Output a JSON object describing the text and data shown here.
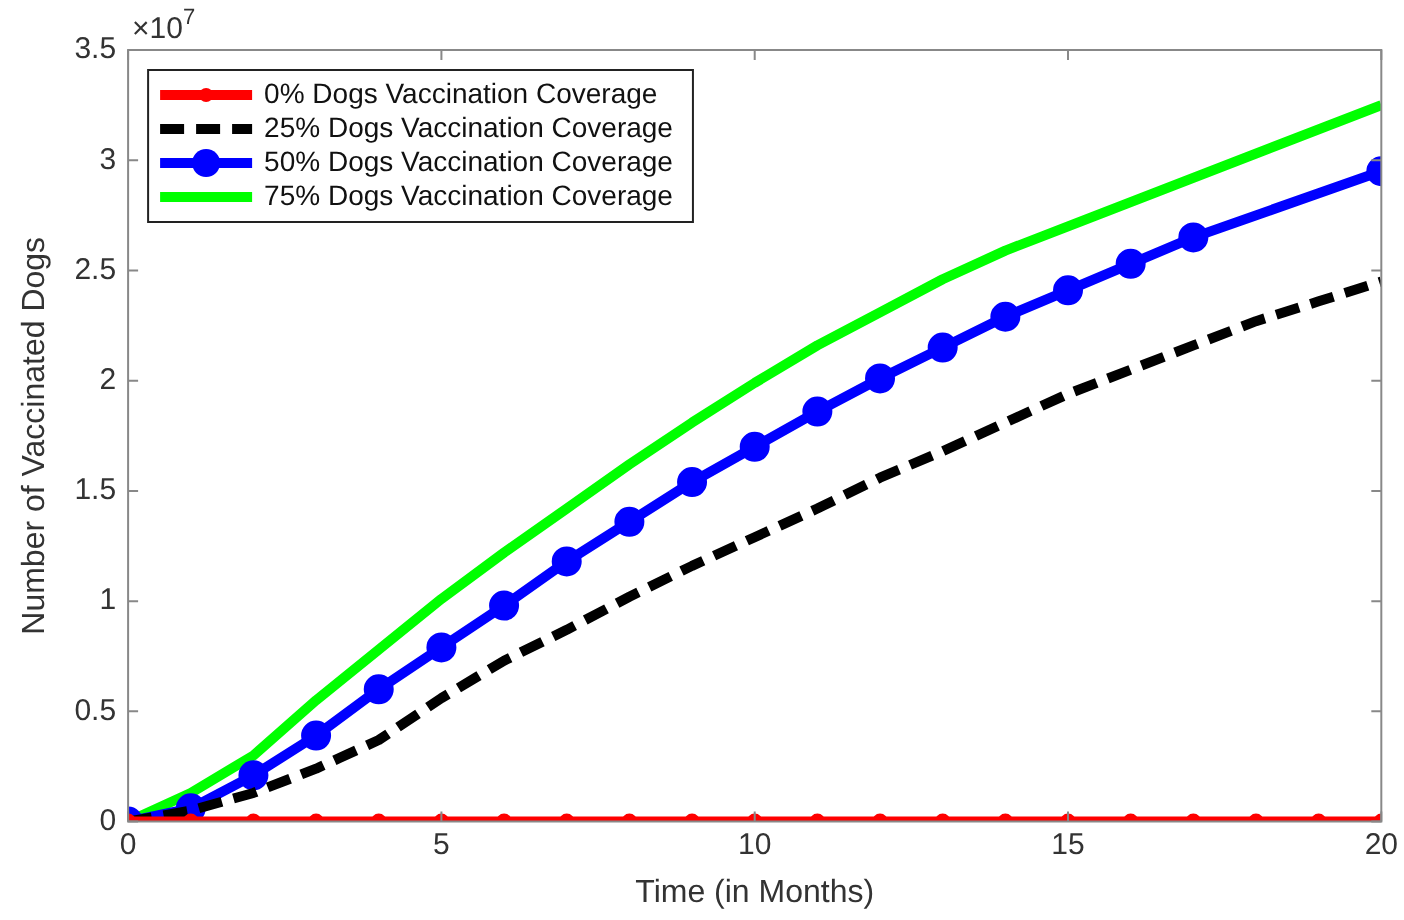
{
  "chart_data": {
    "type": "line",
    "xlabel": "Time (in Months)",
    "ylabel": "Number of Vaccinated Dogs",
    "annotations": [
      "×10$^{7}$"
    ],
    "x": [
      0,
      1,
      2,
      3,
      4,
      5,
      6,
      7,
      8,
      9,
      10,
      11,
      12,
      13,
      14,
      15,
      16,
      17,
      18,
      19,
      20
    ],
    "xlim": [
      0,
      20
    ],
    "xticks": [
      0,
      5,
      10,
      15,
      20
    ],
    "ylim": [
      0,
      3.5
    ],
    "yticks": [
      0,
      0.5,
      1,
      1.5,
      2,
      2.5,
      3,
      3.5
    ],
    "grid": false,
    "legend": "top left",
    "series": [
      {
        "name": "0% Dogs Vaccination Coverage",
        "color": "#ff0000",
        "marker": "circle",
        "line_style": "solid",
        "values": [
          0,
          0,
          0,
          0,
          0,
          0,
          0,
          0,
          0,
          0,
          0,
          0,
          0,
          0,
          0,
          0,
          0,
          0,
          0,
          0,
          0
        ]
      },
      {
        "name": "25% Dogs Vaccination Coverage",
        "color": "#000000",
        "marker": "none",
        "line_style": "dashed",
        "values": [
          0,
          0.05,
          0.13,
          0.24,
          0.37,
          0.56,
          0.73,
          0.87,
          1.02,
          1.16,
          1.29,
          1.42,
          1.56,
          1.68,
          1.81,
          1.94,
          2.05,
          2.16,
          2.27,
          2.36,
          2.45
        ]
      },
      {
        "name": "50% Dogs Vaccination Coverage",
        "color": "#0000ff",
        "marker": "circle",
        "line_style": "solid",
        "values": [
          0,
          0.06,
          0.21,
          0.39,
          0.6,
          0.79,
          0.98,
          1.18,
          1.36,
          1.54,
          1.7,
          1.86,
          2.01,
          2.15,
          2.29,
          2.41,
          2.53,
          2.65,
          null,
          null,
          2.95
        ]
      },
      {
        "name": "75% Dogs Vaccination Coverage",
        "color": "#00ff00",
        "marker": "none",
        "line_style": "solid",
        "values": [
          0,
          0.13,
          0.3,
          0.55,
          0.78,
          1.01,
          1.22,
          1.42,
          1.62,
          1.81,
          1.99,
          2.16,
          2.31,
          2.46,
          2.59,
          2.7,
          null,
          null,
          null,
          null,
          3.25
        ]
      }
    ]
  }
}
